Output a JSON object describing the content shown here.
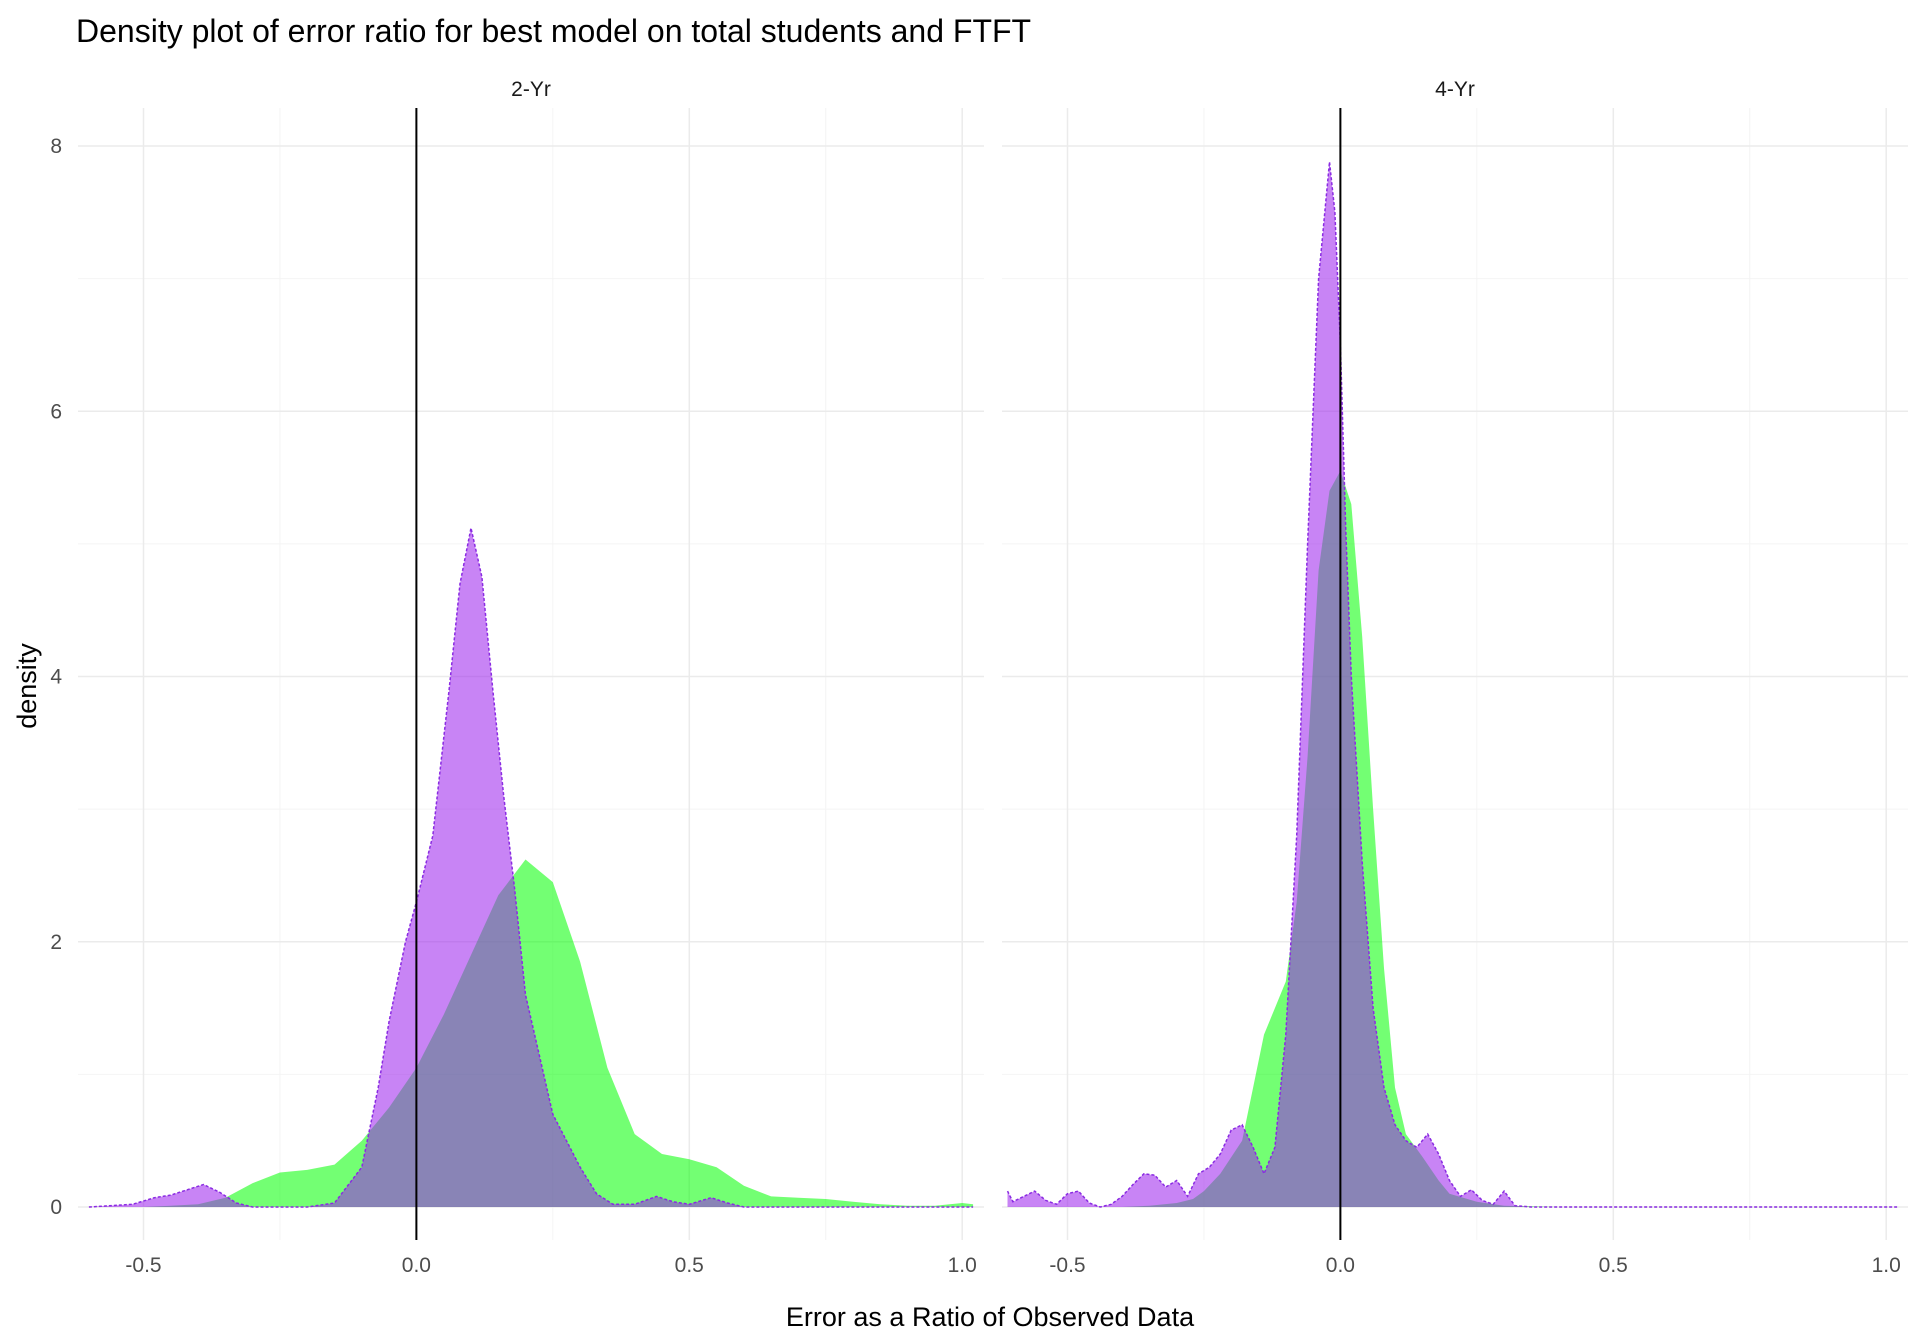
{
  "chart_data": {
    "type": "area",
    "title": "Density plot of error ratio for best model on total students and FTFT",
    "xlabel": "Error as a Ratio of Observed Data",
    "ylabel": "density",
    "xlim": [
      -0.62,
      1.04
    ],
    "ylim": [
      0,
      8.3
    ],
    "x_ticks": [
      -0.5,
      0.0,
      0.5,
      1.0
    ],
    "x_tick_labels": [
      "-0.5",
      "0.0",
      "0.5",
      "1.0"
    ],
    "y_ticks": [
      0,
      2,
      4,
      6,
      8
    ],
    "y_tick_labels": [
      "0",
      "2",
      "4",
      "6",
      "8"
    ],
    "grid": true,
    "legend": "none",
    "vline_x": 0,
    "colors": {
      "green_fill": "#00ff00",
      "purple_fill": "#9b1fec",
      "purple_line": "#8a2be2",
      "overlap": "#8c85b5",
      "grid_major": "#ebebeb",
      "grid_minor": "#f4f4f4"
    },
    "panels": [
      {
        "strip_label": "2-Yr",
        "series": [
          {
            "color": "green",
            "x": [
              -0.6,
              -0.5,
              -0.45,
              -0.4,
              -0.35,
              -0.3,
              -0.25,
              -0.2,
              -0.15,
              -0.1,
              -0.05,
              0.0,
              0.05,
              0.1,
              0.15,
              0.2,
              0.25,
              0.3,
              0.35,
              0.4,
              0.45,
              0.5,
              0.55,
              0.6,
              0.65,
              0.7,
              0.75,
              0.8,
              0.85,
              0.9,
              0.95,
              1.0,
              1.02
            ],
            "y": [
              0,
              0,
              0.01,
              0.02,
              0.07,
              0.18,
              0.26,
              0.28,
              0.32,
              0.5,
              0.75,
              1.05,
              1.45,
              1.9,
              2.35,
              2.62,
              2.45,
              1.85,
              1.05,
              0.55,
              0.4,
              0.36,
              0.3,
              0.16,
              0.08,
              0.07,
              0.06,
              0.04,
              0.02,
              0.01,
              0.01,
              0.03,
              0.02
            ]
          },
          {
            "color": "purple",
            "x": [
              -0.6,
              -0.52,
              -0.48,
              -0.45,
              -0.42,
              -0.39,
              -0.36,
              -0.33,
              -0.3,
              -0.2,
              -0.15,
              -0.1,
              -0.07,
              -0.05,
              -0.02,
              0.0,
              0.03,
              0.06,
              0.08,
              0.1,
              0.12,
              0.14,
              0.16,
              0.18,
              0.2,
              0.25,
              0.3,
              0.33,
              0.36,
              0.4,
              0.44,
              0.47,
              0.5,
              0.54,
              0.57,
              0.6,
              0.7,
              0.8,
              0.9,
              1.0,
              1.02
            ],
            "y": [
              0,
              0.02,
              0.07,
              0.09,
              0.13,
              0.17,
              0.11,
              0.03,
              0,
              0,
              0.03,
              0.3,
              0.9,
              1.4,
              2.0,
              2.3,
              2.8,
              3.9,
              4.7,
              5.12,
              4.75,
              3.9,
              3.1,
              2.4,
              1.6,
              0.7,
              0.3,
              0.1,
              0.02,
              0.02,
              0.08,
              0.04,
              0.02,
              0.07,
              0.03,
              0,
              0,
              0,
              0,
              0,
              0
            ]
          }
        ]
      },
      {
        "strip_label": "4-Yr",
        "series": [
          {
            "color": "green",
            "x": [
              -0.62,
              -0.4,
              -0.35,
              -0.3,
              -0.27,
              -0.25,
              -0.22,
              -0.18,
              -0.16,
              -0.14,
              -0.12,
              -0.1,
              -0.08,
              -0.06,
              -0.04,
              -0.02,
              0.0,
              0.02,
              0.04,
              0.06,
              0.08,
              0.1,
              0.12,
              0.15,
              0.18,
              0.2,
              0.25,
              0.3,
              0.4,
              1.02
            ],
            "y": [
              0,
              0,
              0.01,
              0.03,
              0.06,
              0.12,
              0.25,
              0.5,
              0.9,
              1.3,
              1.5,
              1.7,
              2.3,
              3.4,
              4.8,
              5.4,
              5.55,
              5.3,
              4.3,
              3.0,
              1.8,
              0.9,
              0.55,
              0.38,
              0.2,
              0.1,
              0.04,
              0.01,
              0,
              0
            ]
          },
          {
            "color": "purple",
            "x": [
              -0.61,
              -0.6,
              -0.58,
              -0.56,
              -0.54,
              -0.52,
              -0.5,
              -0.48,
              -0.46,
              -0.44,
              -0.42,
              -0.4,
              -0.38,
              -0.36,
              -0.34,
              -0.32,
              -0.3,
              -0.28,
              -0.26,
              -0.24,
              -0.22,
              -0.2,
              -0.18,
              -0.16,
              -0.14,
              -0.12,
              -0.1,
              -0.08,
              -0.06,
              -0.04,
              -0.02,
              -0.01,
              0.0,
              0.01,
              0.02,
              0.04,
              0.06,
              0.08,
              0.1,
              0.12,
              0.14,
              0.16,
              0.18,
              0.2,
              0.22,
              0.24,
              0.26,
              0.28,
              0.3,
              0.32,
              0.35,
              0.5,
              0.75,
              1.02
            ],
            "y": [
              0.12,
              0.04,
              0.08,
              0.12,
              0.05,
              0.02,
              0.1,
              0.12,
              0.03,
              0.0,
              0.02,
              0.08,
              0.17,
              0.25,
              0.24,
              0.15,
              0.2,
              0.08,
              0.25,
              0.3,
              0.4,
              0.58,
              0.62,
              0.45,
              0.25,
              0.45,
              1.3,
              2.8,
              5.0,
              7.0,
              7.88,
              7.5,
              6.5,
              5.1,
              4.0,
              2.6,
              1.5,
              0.9,
              0.62,
              0.5,
              0.45,
              0.55,
              0.4,
              0.2,
              0.08,
              0.13,
              0.05,
              0.02,
              0.12,
              0.01,
              0,
              0,
              0,
              0
            ]
          }
        ]
      }
    ]
  }
}
